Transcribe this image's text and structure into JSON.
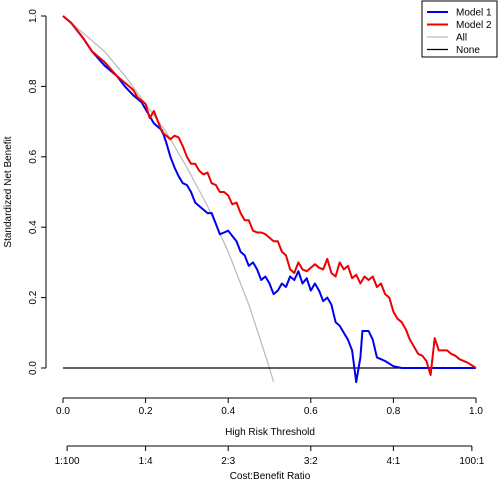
{
  "chart_data": {
    "type": "line",
    "title": "",
    "xlabel": "High Risk Threshold",
    "ylabel": "Standardized Net Benefit",
    "x2label": "Cost:Benefit Ratio",
    "xlim": [
      0,
      1
    ],
    "ylim": [
      -0.05,
      1.0
    ],
    "grid": false,
    "legend_position": "top-right",
    "x_ticks": [
      "0.0",
      "0.2",
      "0.4",
      "0.6",
      "0.8",
      "1.0"
    ],
    "y_ticks": [
      "0.0",
      "0.2",
      "0.4",
      "0.6",
      "0.8",
      "1.0"
    ],
    "x2_ticks": [
      {
        "x": 0.0099,
        "label": "1:100"
      },
      {
        "x": 0.2,
        "label": "1:4"
      },
      {
        "x": 0.4,
        "label": "2:3"
      },
      {
        "x": 0.6,
        "label": "3:2"
      },
      {
        "x": 0.8,
        "label": "4:1"
      },
      {
        "x": 0.99,
        "label": "100:1"
      }
    ],
    "series": [
      {
        "name": "Model 1",
        "color": "#0000ee",
        "points": [
          [
            0.0,
            1.0
          ],
          [
            0.02,
            0.98
          ],
          [
            0.05,
            0.935
          ],
          [
            0.07,
            0.9
          ],
          [
            0.1,
            0.86
          ],
          [
            0.13,
            0.83
          ],
          [
            0.15,
            0.8
          ],
          [
            0.17,
            0.775
          ],
          [
            0.19,
            0.755
          ],
          [
            0.2,
            0.735
          ],
          [
            0.22,
            0.695
          ],
          [
            0.24,
            0.675
          ],
          [
            0.25,
            0.64
          ],
          [
            0.26,
            0.6
          ],
          [
            0.27,
            0.57
          ],
          [
            0.28,
            0.545
          ],
          [
            0.29,
            0.525
          ],
          [
            0.3,
            0.52
          ],
          [
            0.31,
            0.5
          ],
          [
            0.32,
            0.47
          ],
          [
            0.33,
            0.46
          ],
          [
            0.34,
            0.45
          ],
          [
            0.35,
            0.44
          ],
          [
            0.36,
            0.44
          ],
          [
            0.37,
            0.41
          ],
          [
            0.38,
            0.38
          ],
          [
            0.39,
            0.385
          ],
          [
            0.4,
            0.39
          ],
          [
            0.41,
            0.375
          ],
          [
            0.42,
            0.36
          ],
          [
            0.43,
            0.33
          ],
          [
            0.44,
            0.32
          ],
          [
            0.45,
            0.29
          ],
          [
            0.46,
            0.3
          ],
          [
            0.47,
            0.28
          ],
          [
            0.48,
            0.25
          ],
          [
            0.49,
            0.26
          ],
          [
            0.5,
            0.24
          ],
          [
            0.51,
            0.21
          ],
          [
            0.52,
            0.22
          ],
          [
            0.53,
            0.24
          ],
          [
            0.54,
            0.23
          ],
          [
            0.55,
            0.26
          ],
          [
            0.56,
            0.25
          ],
          [
            0.57,
            0.275
          ],
          [
            0.58,
            0.24
          ],
          [
            0.59,
            0.255
          ],
          [
            0.6,
            0.22
          ],
          [
            0.61,
            0.24
          ],
          [
            0.62,
            0.22
          ],
          [
            0.63,
            0.19
          ],
          [
            0.64,
            0.2
          ],
          [
            0.65,
            0.18
          ],
          [
            0.66,
            0.13
          ],
          [
            0.67,
            0.12
          ],
          [
            0.68,
            0.1
          ],
          [
            0.69,
            0.08
          ],
          [
            0.7,
            0.05
          ],
          [
            0.71,
            -0.04
          ],
          [
            0.72,
            0.03
          ],
          [
            0.725,
            0.105
          ],
          [
            0.74,
            0.105
          ],
          [
            0.75,
            0.08
          ],
          [
            0.76,
            0.03
          ],
          [
            0.78,
            0.02
          ],
          [
            0.8,
            0.005
          ],
          [
            0.82,
            0.0
          ],
          [
            1.0,
            0.0
          ]
        ]
      },
      {
        "name": "Model 2",
        "color": "#ee0000",
        "points": [
          [
            0.0,
            1.0
          ],
          [
            0.02,
            0.98
          ],
          [
            0.05,
            0.935
          ],
          [
            0.07,
            0.9
          ],
          [
            0.1,
            0.87
          ],
          [
            0.13,
            0.83
          ],
          [
            0.15,
            0.81
          ],
          [
            0.16,
            0.8
          ],
          [
            0.17,
            0.79
          ],
          [
            0.18,
            0.77
          ],
          [
            0.2,
            0.75
          ],
          [
            0.21,
            0.71
          ],
          [
            0.22,
            0.73
          ],
          [
            0.23,
            0.7
          ],
          [
            0.24,
            0.67
          ],
          [
            0.25,
            0.66
          ],
          [
            0.26,
            0.65
          ],
          [
            0.27,
            0.66
          ],
          [
            0.28,
            0.655
          ],
          [
            0.29,
            0.63
          ],
          [
            0.3,
            0.6
          ],
          [
            0.31,
            0.58
          ],
          [
            0.32,
            0.58
          ],
          [
            0.33,
            0.56
          ],
          [
            0.34,
            0.55
          ],
          [
            0.35,
            0.555
          ],
          [
            0.36,
            0.525
          ],
          [
            0.37,
            0.52
          ],
          [
            0.38,
            0.5
          ],
          [
            0.39,
            0.5
          ],
          [
            0.4,
            0.49
          ],
          [
            0.41,
            0.465
          ],
          [
            0.42,
            0.47
          ],
          [
            0.43,
            0.44
          ],
          [
            0.44,
            0.42
          ],
          [
            0.45,
            0.42
          ],
          [
            0.46,
            0.39
          ],
          [
            0.47,
            0.385
          ],
          [
            0.48,
            0.385
          ],
          [
            0.49,
            0.38
          ],
          [
            0.5,
            0.37
          ],
          [
            0.51,
            0.36
          ],
          [
            0.52,
            0.36
          ],
          [
            0.53,
            0.33
          ],
          [
            0.54,
            0.32
          ],
          [
            0.55,
            0.28
          ],
          [
            0.56,
            0.27
          ],
          [
            0.57,
            0.3
          ],
          [
            0.58,
            0.28
          ],
          [
            0.59,
            0.275
          ],
          [
            0.6,
            0.285
          ],
          [
            0.61,
            0.295
          ],
          [
            0.62,
            0.285
          ],
          [
            0.63,
            0.28
          ],
          [
            0.64,
            0.31
          ],
          [
            0.65,
            0.27
          ],
          [
            0.66,
            0.26
          ],
          [
            0.67,
            0.3
          ],
          [
            0.68,
            0.28
          ],
          [
            0.69,
            0.29
          ],
          [
            0.7,
            0.255
          ],
          [
            0.71,
            0.265
          ],
          [
            0.72,
            0.24
          ],
          [
            0.73,
            0.26
          ],
          [
            0.74,
            0.25
          ],
          [
            0.75,
            0.26
          ],
          [
            0.76,
            0.23
          ],
          [
            0.77,
            0.24
          ],
          [
            0.78,
            0.21
          ],
          [
            0.79,
            0.2
          ],
          [
            0.8,
            0.16
          ],
          [
            0.81,
            0.14
          ],
          [
            0.82,
            0.13
          ],
          [
            0.83,
            0.11
          ],
          [
            0.84,
            0.08
          ],
          [
            0.85,
            0.06
          ],
          [
            0.86,
            0.04
          ],
          [
            0.87,
            0.035
          ],
          [
            0.88,
            0.02
          ],
          [
            0.89,
            -0.02
          ],
          [
            0.9,
            0.085
          ],
          [
            0.91,
            0.05
          ],
          [
            0.92,
            0.05
          ],
          [
            0.93,
            0.05
          ],
          [
            0.94,
            0.04
          ],
          [
            0.95,
            0.035
          ],
          [
            0.96,
            0.025
          ],
          [
            0.98,
            0.015
          ],
          [
            1.0,
            0.0
          ]
        ]
      },
      {
        "name": "All",
        "color": "#bebebe",
        "points": [
          [
            0.0,
            1.0
          ],
          [
            0.05,
            0.95
          ],
          [
            0.1,
            0.9
          ],
          [
            0.15,
            0.83
          ],
          [
            0.2,
            0.75
          ],
          [
            0.25,
            0.67
          ],
          [
            0.3,
            0.57
          ],
          [
            0.35,
            0.46
          ],
          [
            0.4,
            0.33
          ],
          [
            0.45,
            0.18
          ],
          [
            0.5,
            0.0
          ],
          [
            0.51,
            -0.04
          ]
        ]
      },
      {
        "name": "None",
        "color": "#000000",
        "points": [
          [
            0.0,
            0.0
          ],
          [
            1.0,
            0.0
          ]
        ]
      }
    ]
  }
}
